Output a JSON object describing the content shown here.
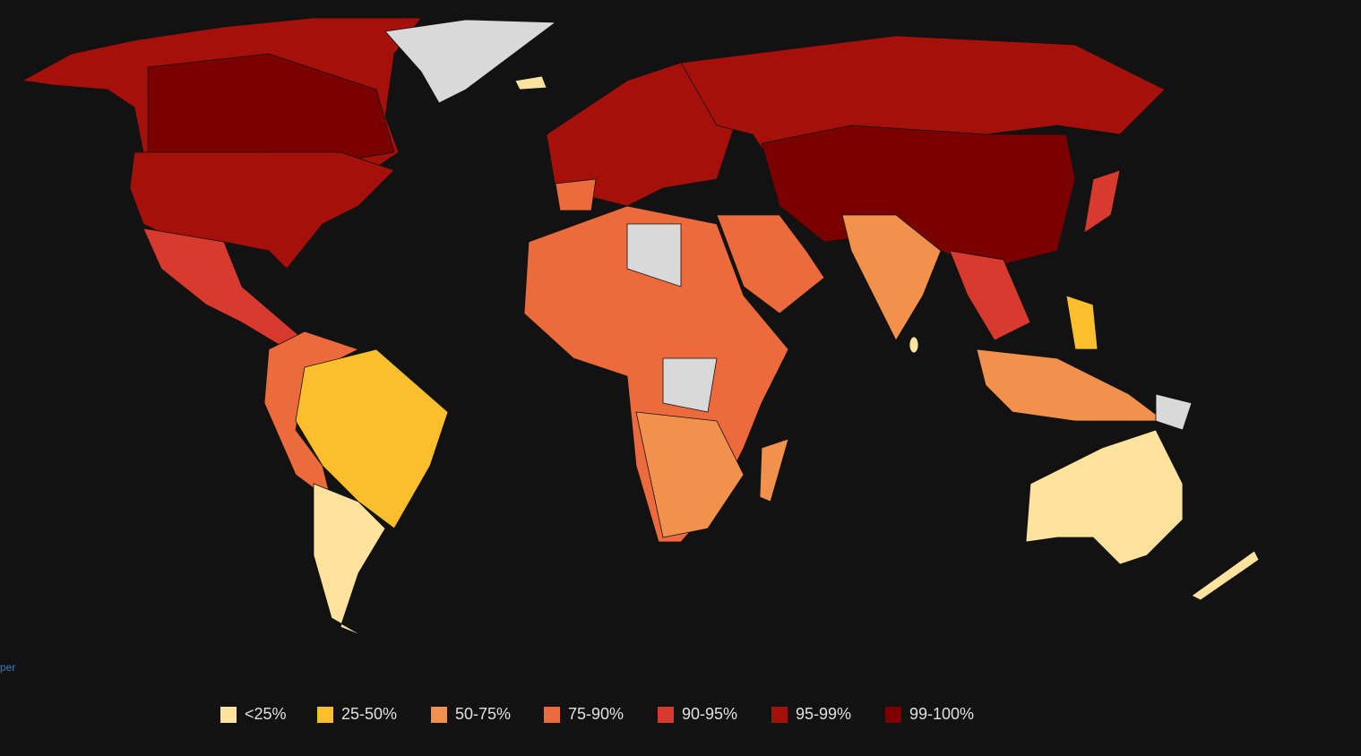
{
  "attribution": "per",
  "legend": {
    "items": [
      {
        "label": "<25%",
        "color": "#fee39e"
      },
      {
        "label": "25-50%",
        "color": "#fbbf2d"
      },
      {
        "label": "50-75%",
        "color": "#f2914c"
      },
      {
        "label": "75-90%",
        "color": "#ec6a3b"
      },
      {
        "label": "90-95%",
        "color": "#d93a2e"
      },
      {
        "label": "95-99%",
        "color": "#a5100b"
      },
      {
        "label": "99-100%",
        "color": "#7a0000"
      }
    ]
  }
}
